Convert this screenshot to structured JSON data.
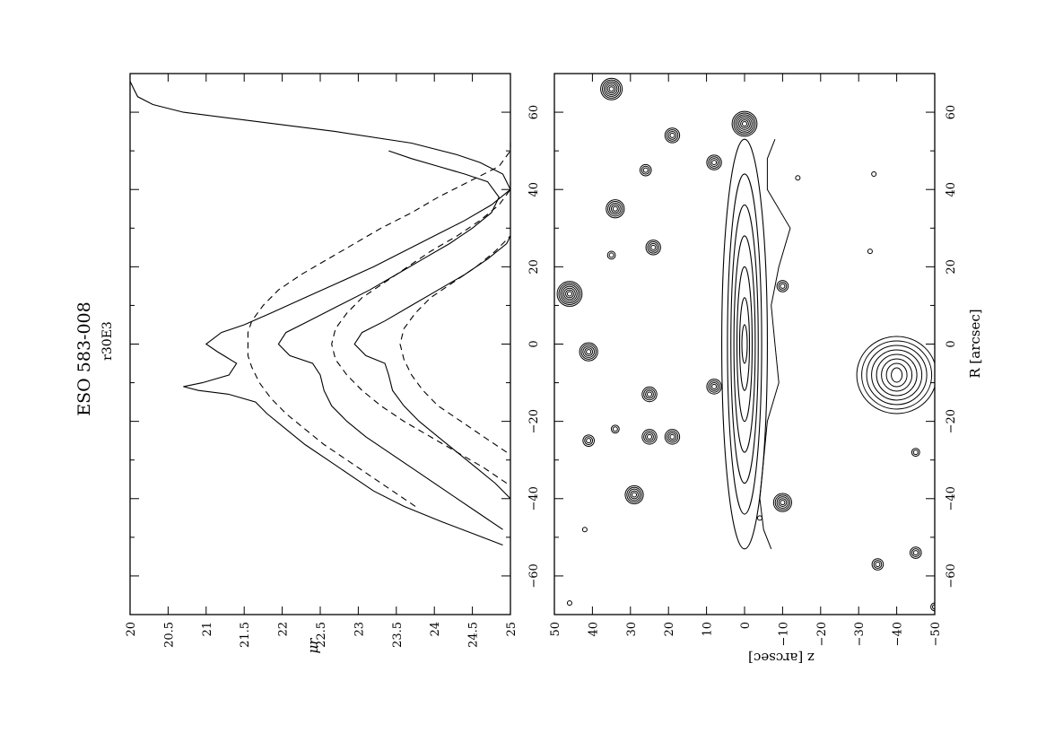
{
  "chart_data": [
    {
      "type": "line",
      "title": "ESO 583-008",
      "subtitle": "r30E3",
      "ylabel": "μr",
      "xlim": [
        -70,
        70
      ],
      "ylim": [
        20,
        25
      ],
      "y_inverted": true,
      "x_ticks": [
        -60,
        -40,
        -20,
        0,
        20,
        40,
        60
      ],
      "y_ticks": [
        20,
        20.5,
        21,
        21.5,
        22,
        22.5,
        23,
        23.5,
        24,
        24.5,
        25
      ],
      "y_tick_labels": [
        "20",
        "20.5",
        "21",
        "21.5",
        "22",
        "22.5",
        "23",
        "23.5",
        "24",
        "24.5",
        "25"
      ],
      "grid": false,
      "series": [
        {
          "style": "solid",
          "x": [
            -52,
            -49,
            -46,
            -42,
            -38,
            -34,
            -30,
            -26,
            -22,
            -18,
            -15,
            -13,
            -12,
            -11,
            -10,
            -8,
            -5,
            -2,
            0,
            3,
            5,
            8,
            12,
            16,
            20,
            24,
            28,
            32,
            36,
            40,
            44,
            47,
            49,
            52,
            55,
            58,
            60,
            62,
            64,
            66,
            68
          ],
          "y": [
            24.9,
            24.5,
            24.1,
            23.6,
            23.2,
            22.9,
            22.6,
            22.3,
            22.05,
            21.8,
            21.65,
            21.3,
            20.9,
            20.7,
            20.95,
            21.3,
            21.4,
            21.15,
            21.0,
            21.2,
            21.5,
            21.85,
            22.3,
            22.75,
            23.2,
            23.6,
            24.0,
            24.4,
            24.75,
            25.0,
            24.9,
            24.6,
            24.3,
            23.7,
            22.7,
            21.5,
            20.7,
            20.3,
            20.1,
            20.05,
            20.0
          ]
        },
        {
          "style": "solid",
          "x": [
            -48,
            -44,
            -40,
            -36,
            -32,
            -28,
            -24,
            -20,
            -16,
            -12,
            -8,
            -5,
            -3,
            0,
            3,
            6,
            10,
            14,
            18,
            22,
            26,
            30,
            34,
            38,
            42,
            44,
            46,
            48,
            50
          ],
          "y": [
            24.9,
            24.6,
            24.3,
            24.0,
            23.7,
            23.4,
            23.1,
            22.85,
            22.65,
            22.55,
            22.5,
            22.4,
            22.1,
            21.95,
            22.05,
            22.35,
            22.75,
            23.15,
            23.5,
            23.85,
            24.2,
            24.5,
            24.75,
            24.85,
            24.7,
            24.4,
            24.05,
            23.7,
            23.4
          ]
        },
        {
          "style": "solid",
          "x": [
            -40,
            -36,
            -32,
            -28,
            -24,
            -20,
            -16,
            -12,
            -8,
            -5,
            -3,
            0,
            3,
            6,
            10,
            14,
            18,
            22,
            26,
            28
          ],
          "y": [
            25.0,
            24.8,
            24.55,
            24.3,
            24.05,
            23.8,
            23.6,
            23.45,
            23.4,
            23.35,
            23.1,
            22.95,
            23.05,
            23.35,
            23.7,
            24.05,
            24.4,
            24.7,
            24.95,
            25.0
          ]
        },
        {
          "style": "dashed",
          "x": [
            -42,
            -38,
            -34,
            -30,
            -26,
            -22,
            -18,
            -14,
            -10,
            -6,
            -3,
            0,
            3,
            6,
            10,
            14,
            18,
            22,
            26,
            30,
            34,
            38,
            42,
            46,
            50,
            52
          ],
          "y": [
            23.75,
            23.45,
            23.15,
            22.85,
            22.55,
            22.3,
            22.05,
            21.85,
            21.7,
            21.6,
            21.55,
            21.55,
            21.55,
            21.6,
            21.75,
            21.95,
            22.25,
            22.6,
            22.95,
            23.3,
            23.7,
            24.05,
            24.45,
            24.85,
            25.2,
            25.4
          ]
        },
        {
          "style": "dashed",
          "x": [
            -36,
            -32,
            -28,
            -24,
            -20,
            -16,
            -12,
            -8,
            -4,
            0,
            4,
            8,
            12,
            16,
            20,
            24,
            28,
            32,
            36,
            40,
            42
          ],
          "y": [
            24.95,
            24.65,
            24.3,
            23.95,
            23.6,
            23.3,
            23.05,
            22.85,
            22.7,
            22.65,
            22.7,
            22.85,
            23.05,
            23.35,
            23.65,
            23.95,
            24.3,
            24.6,
            24.85,
            25.1,
            25.25
          ]
        },
        {
          "style": "dashed",
          "x": [
            -28,
            -24,
            -20,
            -16,
            -12,
            -8,
            -4,
            0,
            4,
            8,
            12,
            16,
            20,
            24,
            28
          ],
          "y": [
            24.95,
            24.65,
            24.35,
            24.05,
            23.85,
            23.7,
            23.6,
            23.55,
            23.6,
            23.75,
            23.95,
            24.25,
            24.55,
            24.8,
            25.05
          ]
        }
      ]
    },
    {
      "type": "contour",
      "xlabel": "R [arcsec]",
      "ylabel": "z [arcsec]",
      "xlim": [
        -70,
        70
      ],
      "ylim": [
        -50,
        50
      ],
      "x_ticks": [
        -60,
        -40,
        -20,
        0,
        20,
        40,
        60
      ],
      "y_ticks": [
        -50,
        -40,
        -30,
        -20,
        -10,
        0,
        10,
        20,
        30,
        40,
        50
      ],
      "y_tick_labels": [
        "−50",
        "−40",
        "−30",
        "−20",
        "−10",
        "0",
        "10",
        "20",
        "30",
        "40",
        "50"
      ],
      "galaxy_disk": {
        "center": [
          0,
          0
        ],
        "levels": [
          {
            "a": 53,
            "b": 6.0
          },
          {
            "a": 44,
            "b": 4.5
          },
          {
            "a": 36,
            "b": 3.6
          },
          {
            "a": 28,
            "b": 2.8
          },
          {
            "a": 20,
            "b": 2.0
          },
          {
            "a": 12,
            "b": 1.3
          },
          {
            "a": 5,
            "b": 0.7
          }
        ]
      },
      "stars": [
        {
          "x": -67,
          "y": 46,
          "rings": 1
        },
        {
          "x": -48,
          "y": 42,
          "rings": 1
        },
        {
          "x": -25,
          "y": 41,
          "rings": 3
        },
        {
          "x": -22,
          "y": 34,
          "rings": 2
        },
        {
          "x": -2,
          "y": 41,
          "rings": 5
        },
        {
          "x": 13,
          "y": 46,
          "rings": 7
        },
        {
          "x": 23,
          "y": 35,
          "rings": 2
        },
        {
          "x": 25,
          "y": 24,
          "rings": 4
        },
        {
          "x": 35,
          "y": 34,
          "rings": 5
        },
        {
          "x": 45,
          "y": 26,
          "rings": 3
        },
        {
          "x": 54,
          "y": 19,
          "rings": 4
        },
        {
          "x": 66,
          "y": 35,
          "rings": 6
        },
        {
          "x": -13,
          "y": 25,
          "rings": 4
        },
        {
          "x": -24,
          "y": 25,
          "rings": 4
        },
        {
          "x": -24,
          "y": 19,
          "rings": 4
        },
        {
          "x": -39,
          "y": 29,
          "rings": 5
        },
        {
          "x": 47,
          "y": 8,
          "rings": 4
        },
        {
          "x": -11,
          "y": 8,
          "rings": 4
        },
        {
          "x": 57,
          "y": 0,
          "rings": 7
        },
        {
          "x": -41,
          "y": -10,
          "rings": 5
        },
        {
          "x": 15,
          "y": -10,
          "rings": 3
        },
        {
          "x": -57,
          "y": -35,
          "rings": 3
        },
        {
          "x": -54,
          "y": -45,
          "rings": 3
        },
        {
          "x": -28,
          "y": -45,
          "rings": 2
        },
        {
          "x": -68,
          "y": -50,
          "rings": 2
        },
        {
          "x": 43,
          "y": -14,
          "rings": 1
        },
        {
          "x": 44,
          "y": -34,
          "rings": 1
        },
        {
          "x": 24,
          "y": -33,
          "rings": 1
        },
        {
          "x": -45,
          "y": -4,
          "rings": 1
        }
      ],
      "bright_source": {
        "x": -8,
        "y": -40,
        "rings": 8
      },
      "envelope_x": [
        -53,
        -48,
        -40,
        -30,
        -20,
        -10,
        0,
        10,
        20,
        30,
        40,
        48,
        53
      ],
      "envelope_z": [
        -7,
        -5,
        -4,
        -5,
        -6,
        -9,
        -8,
        -7,
        -9,
        -12,
        -6,
        -6,
        -8
      ]
    }
  ]
}
